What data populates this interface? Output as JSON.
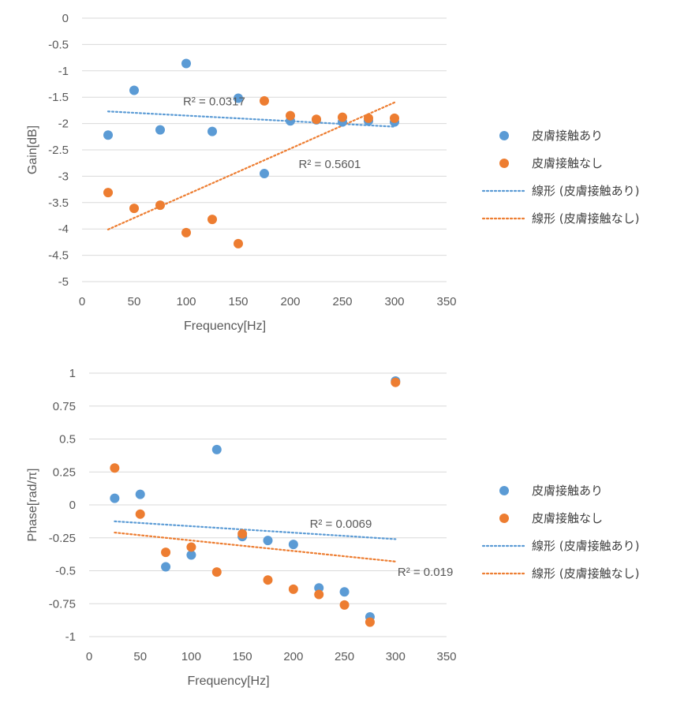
{
  "chart_data": [
    {
      "type": "scatter",
      "title": "",
      "xlabel": "Frequency[Hz]",
      "ylabel": "Gain[dB]",
      "xlim": [
        0,
        350
      ],
      "ylim": [
        -5,
        0
      ],
      "xticks": [
        0,
        50,
        100,
        150,
        200,
        250,
        300,
        350
      ],
      "yticks": [
        0,
        -0.5,
        -1,
        -1.5,
        -2,
        -2.5,
        -3,
        -3.5,
        -4,
        -4.5,
        -5
      ],
      "xtick_labels": [
        "0",
        "50",
        "100",
        "150",
        "200",
        "250",
        "300",
        "350"
      ],
      "ytick_labels": [
        "0",
        "-0.5",
        "-1",
        "-1.5",
        "-2",
        "-2.5",
        "-3",
        "-3.5",
        "-4",
        "-4.5",
        "-5"
      ],
      "grid": "horizontal",
      "series": [
        {
          "name": "皮膚接触あり",
          "color": "#5b9bd5",
          "x": [
            25,
            50,
            75,
            100,
            125,
            150,
            175,
            200,
            225,
            250,
            275,
            300
          ],
          "y": [
            -2.22,
            -1.37,
            -2.12,
            -0.86,
            -2.15,
            -1.52,
            -2.95,
            -1.95,
            -1.93,
            -1.97,
            -1.95,
            -1.97
          ]
        },
        {
          "name": "皮膚接触なし",
          "color": "#ed7d31",
          "x": [
            25,
            50,
            75,
            100,
            125,
            150,
            175,
            200,
            225,
            250,
            275,
            300
          ],
          "y": [
            -3.31,
            -3.61,
            -3.55,
            -4.07,
            -3.82,
            -4.28,
            -1.57,
            -1.85,
            -1.92,
            -1.88,
            -1.9,
            -1.9
          ]
        }
      ],
      "trendlines": [
        {
          "name": "線形 (皮膚接触あり)",
          "color": "#5b9bd5",
          "x": [
            25,
            300
          ],
          "y": [
            -1.77,
            -2.06
          ]
        },
        {
          "name": "線形 (皮膚接触なし)",
          "color": "#ed7d31",
          "x": [
            25,
            300
          ],
          "y": [
            -4.01,
            -1.6
          ]
        }
      ],
      "annotations": [
        {
          "text": "R² = 0.0317",
          "x": 97,
          "y": -1.58
        },
        {
          "text": "R² = 0.5601",
          "x": 208,
          "y": -2.77
        }
      ],
      "legend": {
        "placement": "right",
        "items": [
          "皮膚接触あり",
          "皮膚接触なし",
          "線形 (皮膚接触あり)",
          "線形 (皮膚接触なし)"
        ]
      }
    },
    {
      "type": "scatter",
      "title": "",
      "xlabel": "Frequency[Hz]",
      "ylabel": "Phase[rad/π]",
      "xlim": [
        0,
        350
      ],
      "ylim": [
        -1,
        1
      ],
      "xticks": [
        0,
        50,
        100,
        150,
        200,
        250,
        300,
        350
      ],
      "yticks": [
        1,
        0.75,
        0.5,
        0.25,
        0,
        -0.25,
        -0.5,
        -0.75,
        -1
      ],
      "xtick_labels": [
        "0",
        "50",
        "100",
        "150",
        "200",
        "250",
        "300",
        "350"
      ],
      "ytick_labels": [
        "1",
        "0.75",
        "0.5",
        "0.25",
        "0",
        "-0.25",
        "-0.5",
        "-0.75",
        "-1"
      ],
      "grid": "horizontal",
      "series": [
        {
          "name": "皮膚接触あり",
          "color": "#5b9bd5",
          "x": [
            25,
            50,
            75,
            100,
            125,
            150,
            175,
            200,
            225,
            250,
            275,
            300
          ],
          "y": [
            0.05,
            0.08,
            -0.47,
            -0.38,
            0.42,
            -0.24,
            -0.27,
            -0.3,
            -0.63,
            -0.66,
            -0.85,
            0.94
          ]
        },
        {
          "name": "皮膚接触なし",
          "color": "#ed7d31",
          "x": [
            25,
            50,
            75,
            100,
            125,
            150,
            175,
            200,
            225,
            250,
            275,
            300
          ],
          "y": [
            0.28,
            -0.07,
            -0.36,
            -0.32,
            -0.51,
            -0.22,
            -0.57,
            -0.64,
            -0.68,
            -0.76,
            -0.89,
            0.93
          ]
        }
      ],
      "trendlines": [
        {
          "name": "線形 (皮膚接触あり)",
          "color": "#5b9bd5",
          "x": [
            25,
            300
          ],
          "y": [
            -0.125,
            -0.26
          ]
        },
        {
          "name": "線形 (皮膚接触なし)",
          "color": "#ed7d31",
          "x": [
            25,
            300
          ],
          "y": [
            -0.21,
            -0.43
          ]
        }
      ],
      "annotations": [
        {
          "text": "R² = 0.0069",
          "x": 216,
          "y": -0.145
        },
        {
          "text": "R² = 0.019",
          "x": 302,
          "y": -0.51
        }
      ],
      "legend": {
        "placement": "right",
        "items": [
          "皮膚接触あり",
          "皮膚接触なし",
          "線形 (皮膚接触あり)",
          "線形 (皮膚接触なし)"
        ]
      }
    }
  ]
}
